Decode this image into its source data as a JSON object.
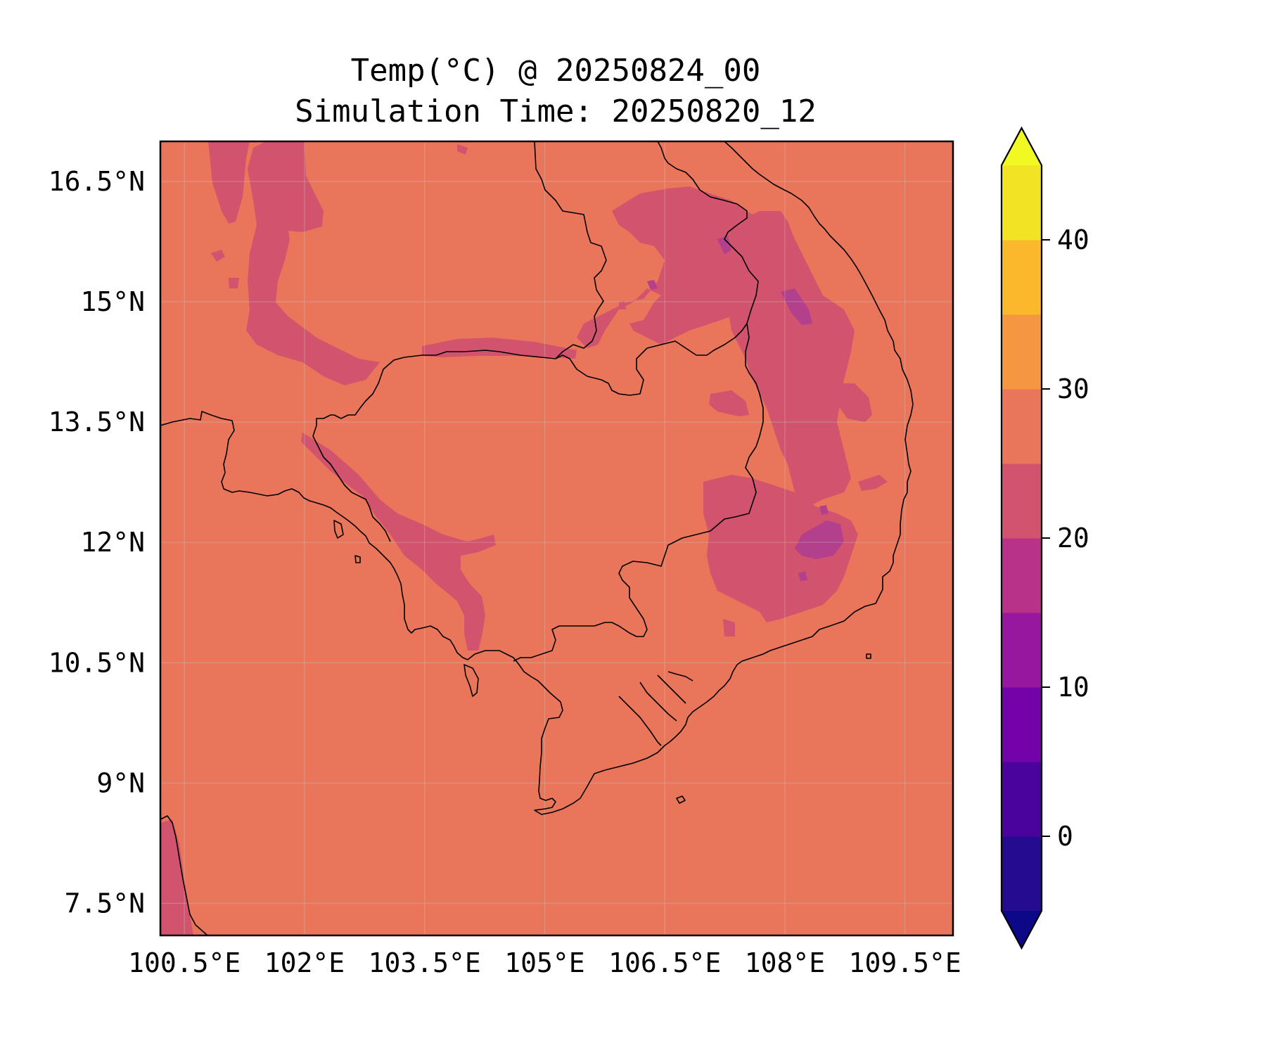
{
  "title": {
    "line1": "Temp(°C) @ 20250824_00",
    "line2": "Simulation Time: 20250820_12"
  },
  "map": {
    "lon_range": [
      100.2,
      110.1
    ],
    "lat_range": [
      7.1,
      17.0
    ],
    "x_ticks": [
      "100.5°E",
      "102°E",
      "103.5°E",
      "105°E",
      "106.5°E",
      "108°E",
      "109.5°E"
    ],
    "x_tick_values": [
      100.5,
      102,
      103.5,
      105,
      106.5,
      108,
      109.5
    ],
    "y_ticks": [
      "16.5°N",
      "15°N",
      "13.5°N",
      "12°N",
      "10.5°N",
      "9°N",
      "7.5°N"
    ],
    "y_tick_values": [
      16.5,
      15,
      13.5,
      12,
      10.5,
      9,
      7.5
    ],
    "background_band_color": "#e9765a",
    "cool_band_color": "#d2536d",
    "cold_band_color": "#b3408c"
  },
  "colorbar": {
    "ticks": [
      "0",
      "10",
      "20",
      "30",
      "40"
    ],
    "tick_values": [
      0,
      10,
      20,
      30,
      40
    ],
    "range": [
      -5,
      45
    ],
    "extend": "both",
    "levels": [
      {
        "from": -5,
        "to": 0,
        "color": "#240b8f"
      },
      {
        "from": 0,
        "to": 5,
        "color": "#4a039c"
      },
      {
        "from": 5,
        "to": 10,
        "color": "#7302a8"
      },
      {
        "from": 10,
        "to": 15,
        "color": "#98179f"
      },
      {
        "from": 15,
        "to": 20,
        "color": "#b83289"
      },
      {
        "from": 20,
        "to": 25,
        "color": "#d2536d"
      },
      {
        "from": 25,
        "to": 30,
        "color": "#e9765a"
      },
      {
        "from": 30,
        "to": 35,
        "color": "#f59641"
      },
      {
        "from": 35,
        "to": 40,
        "color": "#fcb82d"
      },
      {
        "from": 40,
        "to": 45,
        "color": "#f2e324"
      }
    ],
    "under_color": "#0d0887",
    "over_color": "#f0f921"
  }
}
